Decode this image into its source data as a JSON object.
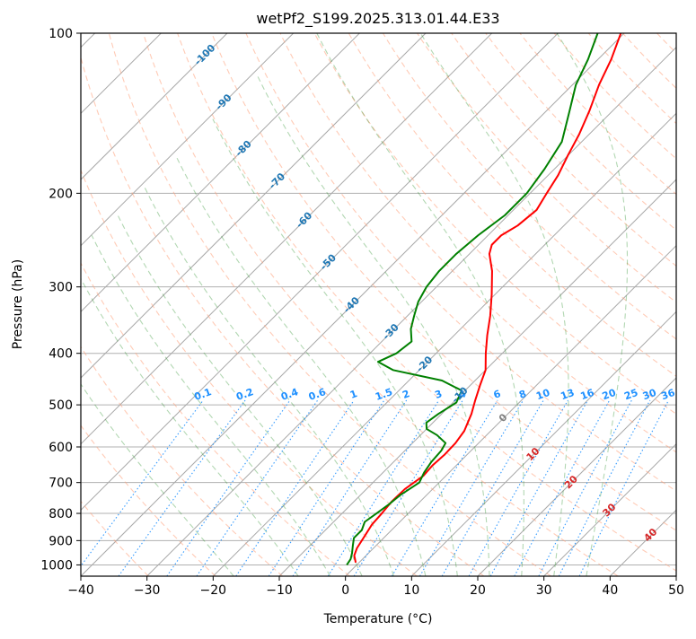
{
  "chart_data": {
    "type": "line",
    "title": "wetPf2_S199.2025.313.01.44.E33",
    "xlabel": "Temperature (°C)",
    "ylabel": "Pressure (hPa)",
    "xlim": [
      -40,
      50
    ],
    "ylim": [
      1050,
      100
    ],
    "y_scale": "log",
    "skew": "skew-T",
    "grid": true,
    "x_ticks": [
      -40,
      -30,
      -20,
      -10,
      0,
      10,
      20,
      30,
      40,
      50
    ],
    "y_ticks": [
      100,
      200,
      300,
      400,
      500,
      600,
      700,
      800,
      900,
      1000
    ],
    "series": [
      {
        "key": "temperature",
        "color": "#ff0000",
        "points": [
          {
            "p": 990,
            "t": -0.5
          },
          {
            "p": 960,
            "t": -1.8
          },
          {
            "p": 930,
            "t": -2.5
          },
          {
            "p": 880,
            "t": -3.2
          },
          {
            "p": 840,
            "t": -3.8
          },
          {
            "p": 800,
            "t": -4.0
          },
          {
            "p": 760,
            "t": -4.3
          },
          {
            "p": 720,
            "t": -4.2
          },
          {
            "p": 680,
            "t": -3.4
          },
          {
            "p": 650,
            "t": -3.6
          },
          {
            "p": 620,
            "t": -3.4
          },
          {
            "p": 590,
            "t": -3.5
          },
          {
            "p": 560,
            "t": -4.0
          },
          {
            "p": 520,
            "t": -5.5
          },
          {
            "p": 490,
            "t": -7.0
          },
          {
            "p": 460,
            "t": -8.5
          },
          {
            "p": 430,
            "t": -10.0
          },
          {
            "p": 400,
            "t": -12.5
          },
          {
            "p": 370,
            "t": -15.0
          },
          {
            "p": 340,
            "t": -17.5
          },
          {
            "p": 310,
            "t": -20.5
          },
          {
            "p": 280,
            "t": -24.0
          },
          {
            "p": 260,
            "t": -27.0
          },
          {
            "p": 250,
            "t": -28.0
          },
          {
            "p": 240,
            "t": -28.0
          },
          {
            "p": 230,
            "t": -27.0
          },
          {
            "p": 215,
            "t": -26.5
          },
          {
            "p": 200,
            "t": -27.5
          },
          {
            "p": 185,
            "t": -28.5
          },
          {
            "p": 170,
            "t": -30.0
          },
          {
            "p": 155,
            "t": -31.5
          },
          {
            "p": 140,
            "t": -33.5
          },
          {
            "p": 125,
            "t": -36.0
          },
          {
            "p": 112,
            "t": -38.0
          },
          {
            "p": 100,
            "t": -40.5
          }
        ]
      },
      {
        "key": "dewpoint",
        "color": "#008000",
        "points": [
          {
            "p": 1000,
            "t": -1.5
          },
          {
            "p": 975,
            "t": -1.8
          },
          {
            "p": 950,
            "t": -2.5
          },
          {
            "p": 920,
            "t": -3.5
          },
          {
            "p": 890,
            "t": -4.5
          },
          {
            "p": 860,
            "t": -4.5
          },
          {
            "p": 830,
            "t": -5.3
          },
          {
            "p": 800,
            "t": -4.8
          },
          {
            "p": 770,
            "t": -4.3
          },
          {
            "p": 740,
            "t": -4.0
          },
          {
            "p": 700,
            "t": -3.0
          },
          {
            "p": 670,
            "t": -3.8
          },
          {
            "p": 640,
            "t": -4.3
          },
          {
            "p": 610,
            "t": -4.5
          },
          {
            "p": 590,
            "t": -5.0
          },
          {
            "p": 570,
            "t": -7.5
          },
          {
            "p": 555,
            "t": -10.0
          },
          {
            "p": 540,
            "t": -11.0
          },
          {
            "p": 520,
            "t": -10.5
          },
          {
            "p": 495,
            "t": -9.5
          },
          {
            "p": 470,
            "t": -10.5
          },
          {
            "p": 450,
            "t": -15.0
          },
          {
            "p": 430,
            "t": -24.0
          },
          {
            "p": 415,
            "t": -27.5
          },
          {
            "p": 400,
            "t": -26.0
          },
          {
            "p": 380,
            "t": -25.5
          },
          {
            "p": 360,
            "t": -27.5
          },
          {
            "p": 340,
            "t": -29.0
          },
          {
            "p": 320,
            "t": -30.5
          },
          {
            "p": 300,
            "t": -31.5
          },
          {
            "p": 280,
            "t": -32.0
          },
          {
            "p": 260,
            "t": -32.0
          },
          {
            "p": 240,
            "t": -31.5
          },
          {
            "p": 220,
            "t": -30.5
          },
          {
            "p": 200,
            "t": -30.5
          },
          {
            "p": 180,
            "t": -31.5
          },
          {
            "p": 160,
            "t": -33.0
          },
          {
            "p": 140,
            "t": -36.5
          },
          {
            "p": 125,
            "t": -39.5
          },
          {
            "p": 112,
            "t": -41.5
          },
          {
            "p": 100,
            "t": -44.0
          }
        ]
      }
    ],
    "isotherms_c": [
      -120,
      -110,
      -100,
      -90,
      -80,
      -70,
      -60,
      -50,
      -40,
      -30,
      -20,
      -10,
      0,
      10,
      20,
      30,
      40,
      50
    ],
    "dry_adiabats": {
      "color": "#ffa07a",
      "theta_k": [
        190,
        200,
        210,
        220,
        230,
        240,
        250,
        260,
        270,
        280,
        290,
        300,
        310,
        320,
        330,
        340,
        350,
        360,
        370,
        380,
        390,
        400,
        410,
        420,
        430,
        440,
        450,
        460,
        470,
        480,
        490,
        500
      ]
    },
    "moist_adiabats": {
      "color": "#228b22",
      "start_c_at_1000": [
        -20,
        -10,
        -5,
        0,
        5,
        10,
        15,
        20,
        25,
        30,
        35
      ]
    },
    "mixing_ratio": {
      "color": "#1e90ff",
      "labels": [
        "0.1",
        "0.2",
        "0.4",
        "0.6",
        "1",
        "1.5",
        "2",
        "3",
        "4",
        "6",
        "8",
        "10",
        "13",
        "16",
        "20",
        "25",
        "30",
        "36"
      ],
      "values": [
        0.1,
        0.2,
        0.4,
        0.6,
        1,
        1.5,
        2,
        3,
        4,
        6,
        8,
        10,
        13,
        16,
        20,
        25,
        30,
        36
      ]
    },
    "labels_blue_isotherms": {
      "color": "#1f77b4",
      "items": [
        {
          "text": "-100",
          "t": -100,
          "p": 110
        },
        {
          "text": "-90",
          "t": -90,
          "p": 135
        },
        {
          "text": "-80",
          "t": -80,
          "p": 165
        },
        {
          "text": "-70",
          "t": -70,
          "p": 190
        },
        {
          "text": "-60",
          "t": -60,
          "p": 225
        },
        {
          "text": "-50",
          "t": -50,
          "p": 270
        },
        {
          "text": "-40",
          "t": -40,
          "p": 325
        },
        {
          "text": "-30",
          "t": -30,
          "p": 365
        },
        {
          "text": "-20",
          "t": -20,
          "p": 420
        },
        {
          "text": "-10",
          "t": -10,
          "p": 480
        }
      ]
    },
    "labels_isotherm_zero": {
      "text": "0",
      "t": 0,
      "p": 530,
      "color": "#808080"
    },
    "labels_red_isotherms": {
      "color": "#d62728",
      "items": [
        {
          "text": "10",
          "t": 10,
          "p": 620
        },
        {
          "text": "20",
          "t": 20,
          "p": 700
        },
        {
          "text": "30",
          "t": 30,
          "p": 790
        },
        {
          "text": "40",
          "t": 40,
          "p": 880
        }
      ]
    }
  }
}
